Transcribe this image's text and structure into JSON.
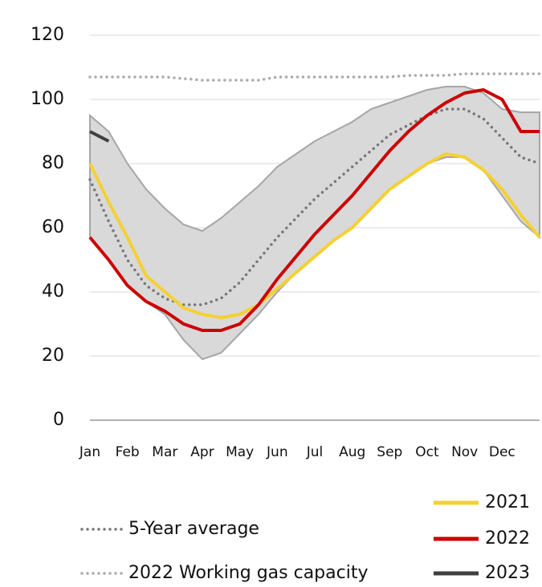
{
  "chart_data": {
    "type": "line",
    "categories": [
      "Jan",
      null,
      "Feb",
      null,
      "Mar",
      null,
      "Apr",
      null,
      "May",
      null,
      "Jun",
      null,
      "Jul",
      null,
      "Aug",
      null,
      "Sep",
      null,
      "Oct",
      null,
      "Nov",
      null,
      "Dec",
      null,
      null
    ],
    "ylim": [
      0,
      120
    ],
    "yticks": [
      0,
      20,
      40,
      60,
      80,
      100,
      120
    ],
    "grid": true,
    "range": {
      "color": "#d9d9d9",
      "upper": [
        95,
        90,
        80,
        72,
        66,
        61,
        59,
        63,
        68,
        73,
        79,
        83,
        87,
        90,
        93,
        97,
        99,
        101,
        103,
        104,
        104,
        102,
        97,
        96,
        96
      ],
      "lower": [
        57,
        50,
        42,
        37,
        33,
        25,
        19,
        21,
        27,
        33,
        40,
        46,
        51,
        56,
        60,
        66,
        72,
        76,
        80,
        82,
        82,
        78,
        70,
        62,
        57
      ]
    },
    "series": [
      {
        "name": "5-Year average",
        "color": "#777777",
        "style": "dotted",
        "values": [
          75,
          62,
          50,
          42,
          38,
          36,
          36,
          38,
          43,
          50,
          57,
          63,
          69,
          74,
          79,
          84,
          89,
          92,
          95,
          97,
          97,
          94,
          88,
          82,
          80
        ]
      },
      {
        "name": "2022 Working gas capacity",
        "color": "#aaaaaa",
        "style": "dotted",
        "values": [
          107,
          107,
          107,
          107,
          107,
          106.5,
          106,
          106,
          106,
          106,
          107,
          107,
          107,
          107,
          107,
          107,
          107,
          107.5,
          107.5,
          107.5,
          108,
          108,
          108,
          108,
          108
        ]
      },
      {
        "name": "2021",
        "color": "#f5d033",
        "style": "solid",
        "values": [
          80,
          68,
          57,
          45,
          40,
          35,
          33,
          32,
          33,
          36,
          41,
          46,
          51,
          56,
          60,
          66,
          72,
          76,
          80,
          83,
          82,
          78,
          72,
          64,
          57
        ]
      },
      {
        "name": "2022",
        "color": "#cc0000",
        "style": "solid",
        "values": [
          57,
          50,
          42,
          37,
          34,
          30,
          28,
          28,
          30,
          36,
          44,
          51,
          58,
          64,
          70,
          77,
          84,
          90,
          95,
          99,
          102,
          103,
          100,
          90,
          90
        ]
      },
      {
        "name": "2023",
        "color": "#404040",
        "style": "solid",
        "values": [
          90,
          87,
          null,
          null,
          null,
          null,
          null,
          null,
          null,
          null,
          null,
          null,
          null,
          null,
          null,
          null,
          null,
          null,
          null,
          null,
          null,
          null,
          null,
          null,
          null
        ]
      }
    ]
  }
}
